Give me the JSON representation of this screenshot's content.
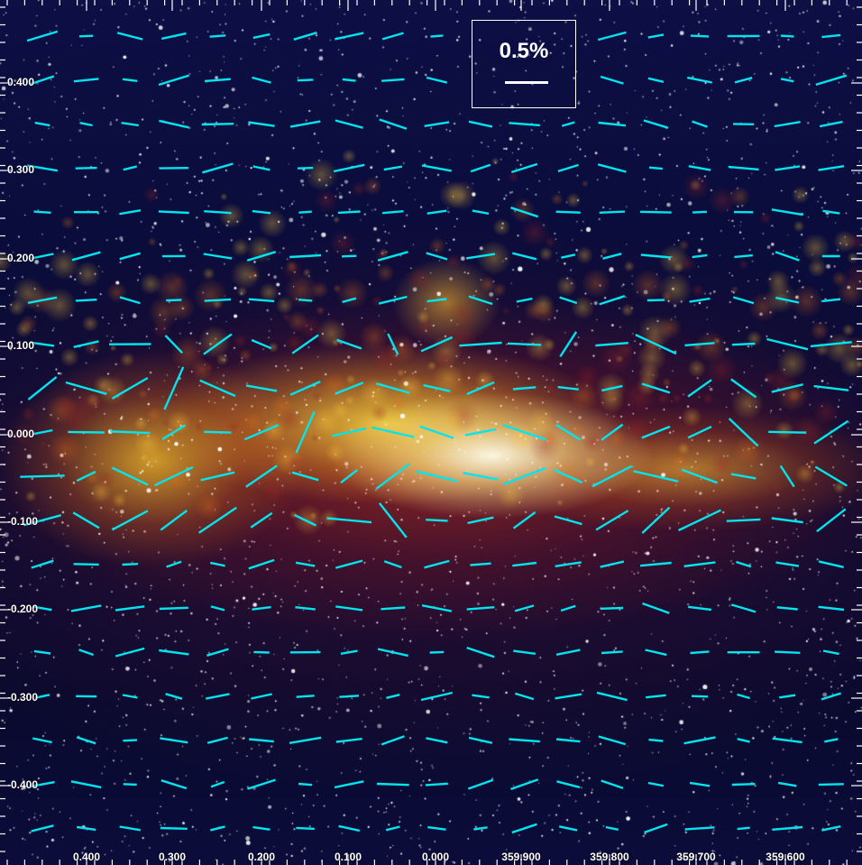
{
  "scale_bar": {
    "label": "0.5%"
  },
  "y_axis": {
    "ticks": [
      "0.400",
      "0.300",
      "0.200",
      "0.100",
      "0.000",
      "-0.100",
      "-0.200",
      "-0.300",
      "-0.400"
    ]
  },
  "x_axis": {
    "ticks": [
      "0.400",
      "0.300",
      "0.200",
      "0.100",
      "0.000",
      "359.900",
      "359.800",
      "359.700",
      "359.600"
    ]
  },
  "colors": {
    "vector": "#00e5ee",
    "frame": "#ffffff",
    "galaxy_core": "#ffe680",
    "dust": "#9a2a1e",
    "sky": "#0c0e40"
  }
}
